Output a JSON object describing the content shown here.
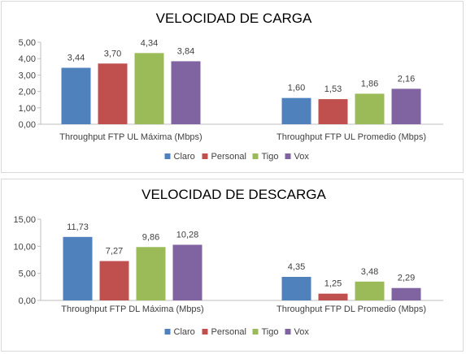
{
  "charts": [
    {
      "type": "bar",
      "title": "VELOCIDAD DE CARGA",
      "categories": [
        "Throughput FTP UL Máxima (Mbps)",
        "Throughput FTP UL Promedio (Mbps)"
      ],
      "ylim": [
        0,
        5
      ],
      "yticks": [
        "0,00",
        "1,00",
        "2,00",
        "3,00",
        "4,00",
        "5,00"
      ],
      "series": [
        {
          "name": "Claro",
          "color": "#4f81bd",
          "values": [
            3.44,
            1.6
          ],
          "labels": [
            "3,44",
            "1,60"
          ]
        },
        {
          "name": "Personal",
          "color": "#c0504d",
          "values": [
            3.7,
            1.53
          ],
          "labels": [
            "3,70",
            "1,53"
          ]
        },
        {
          "name": "Tigo",
          "color": "#9bbb59",
          "values": [
            4.34,
            1.86
          ],
          "labels": [
            "4,34",
            "1,86"
          ]
        },
        {
          "name": "Vox",
          "color": "#8064a2",
          "values": [
            3.84,
            2.16
          ],
          "labels": [
            "3,84",
            "2,16"
          ]
        }
      ],
      "legend": "bottom",
      "grid": false
    },
    {
      "type": "bar",
      "title": "VELOCIDAD DE DESCARGA",
      "categories": [
        "Throughput FTP DL Máxima (Mbps)",
        "Throughput FTP DL Promedio (Mbps)"
      ],
      "ylim": [
        0,
        15
      ],
      "yticks": [
        "0,00",
        "5,00",
        "10,00",
        "15,00"
      ],
      "series": [
        {
          "name": "Claro",
          "color": "#4f81bd",
          "values": [
            11.73,
            4.35
          ],
          "labels": [
            "11,73",
            "4,35"
          ]
        },
        {
          "name": "Personal",
          "color": "#c0504d",
          "values": [
            7.27,
            1.25
          ],
          "labels": [
            "7,27",
            "1,25"
          ]
        },
        {
          "name": "Tigo",
          "color": "#9bbb59",
          "values": [
            9.86,
            3.48
          ],
          "labels": [
            "9,86",
            "3,48"
          ]
        },
        {
          "name": "Vox",
          "color": "#8064a2",
          "values": [
            10.28,
            2.29
          ],
          "labels": [
            "10,28",
            "2,29"
          ]
        }
      ],
      "legend": "bottom",
      "grid": false
    }
  ]
}
